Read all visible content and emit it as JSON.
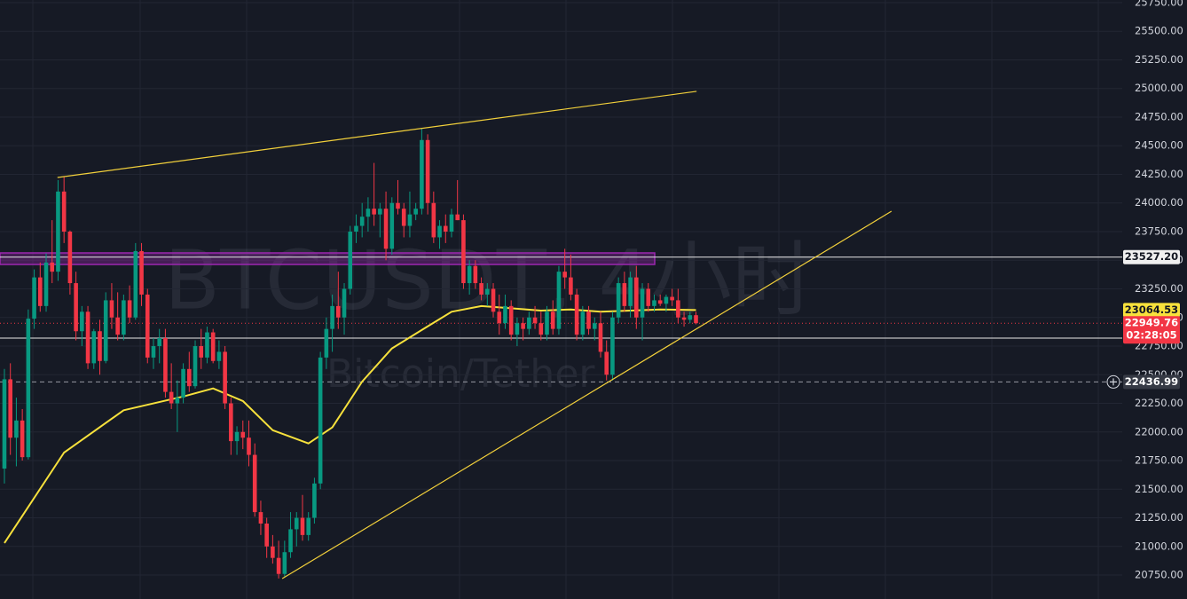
{
  "chart_data": {
    "type": "candlestick",
    "watermark": "BTCUSDT, 4小时",
    "watermark_subtitle": "Bitcoin/Tether",
    "up_color": "#089981",
    "down_color": "#f23645",
    "grid": true,
    "xlim": [
      -0.74,
      187.5
    ],
    "ylim": [
      20541,
      25773
    ],
    "yticks": [
      {
        "value": 25750,
        "label": "25750.00"
      },
      {
        "value": 25500,
        "label": "25500.00"
      },
      {
        "value": 25250,
        "label": "25250.00"
      },
      {
        "value": 25000,
        "label": "25000.00"
      },
      {
        "value": 24750,
        "label": "24750.00"
      },
      {
        "value": 24500,
        "label": "24500.00"
      },
      {
        "value": 24250,
        "label": "24250.00"
      },
      {
        "value": 24000,
        "label": "24000.00"
      },
      {
        "value": 23750,
        "label": "23750.00"
      },
      {
        "value": 23500,
        "label": "23500.00"
      },
      {
        "value": 23250,
        "label": "23250.00"
      },
      {
        "value": 23000,
        "label": "23000.00"
      },
      {
        "value": 22750,
        "label": "22750.00"
      },
      {
        "value": 22500,
        "label": "22500.00"
      },
      {
        "value": 22250,
        "label": "22250.00"
      },
      {
        "value": 22000,
        "label": "22000.00"
      },
      {
        "value": 21750,
        "label": "21750.00"
      },
      {
        "value": 21500,
        "label": "21500.00"
      },
      {
        "value": 21250,
        "label": "21250.00"
      },
      {
        "value": 21000,
        "label": "21000.00"
      },
      {
        "value": 20750,
        "label": "20750.00"
      }
    ],
    "ohlc": [
      [
        21680,
        22550,
        21550,
        22460
      ],
      [
        22460,
        22600,
        21800,
        21950
      ],
      [
        21950,
        22300,
        21700,
        22100
      ],
      [
        22100,
        22200,
        21750,
        21780
      ],
      [
        21780,
        23070,
        21760,
        22990
      ],
      [
        22990,
        23420,
        22900,
        23350
      ],
      [
        23350,
        23480,
        23050,
        23100
      ],
      [
        23100,
        23560,
        23050,
        23480
      ],
      [
        23480,
        23850,
        23300,
        23400
      ],
      [
        23400,
        24200,
        23320,
        24100
      ],
      [
        24100,
        24230,
        23650,
        23750
      ],
      [
        23750,
        23760,
        23200,
        23300
      ],
      [
        23300,
        23400,
        22800,
        22880
      ],
      [
        22880,
        23100,
        22750,
        23050
      ],
      [
        23050,
        23100,
        22550,
        22600
      ],
      [
        22600,
        22900,
        22550,
        22880
      ],
      [
        22880,
        22980,
        22500,
        22620
      ],
      [
        22620,
        23220,
        22600,
        23150
      ],
      [
        23150,
        23300,
        22900,
        23000
      ],
      [
        23000,
        23220,
        22800,
        22850
      ],
      [
        22850,
        23200,
        22800,
        23150
      ],
      [
        23150,
        23280,
        22950,
        23000
      ],
      [
        23000,
        23650,
        22980,
        23580
      ],
      [
        23580,
        23650,
        23100,
        23200
      ],
      [
        23200,
        23250,
        22600,
        22650
      ],
      [
        22650,
        22820,
        22550,
        22750
      ],
      [
        22750,
        22900,
        22600,
        22820
      ],
      [
        22820,
        22900,
        22300,
        22350
      ],
      [
        22350,
        22600,
        22200,
        22250
      ],
      [
        22250,
        22450,
        22000,
        22300
      ],
      [
        22300,
        22600,
        22250,
        22550
      ],
      [
        22550,
        22700,
        22350,
        22400
      ],
      [
        22400,
        22800,
        22380,
        22750
      ],
      [
        22750,
        22900,
        22550,
        22650
      ],
      [
        22650,
        22920,
        22600,
        22870
      ],
      [
        22870,
        22900,
        22600,
        22620
      ],
      [
        22620,
        22800,
        22550,
        22700
      ],
      [
        22700,
        22750,
        22200,
        22250
      ],
      [
        22250,
        22300,
        21800,
        21920
      ],
      [
        21920,
        22050,
        21800,
        22000
      ],
      [
        22000,
        22100,
        21850,
        21950
      ],
      [
        21950,
        22100,
        21700,
        21800
      ],
      [
        21800,
        21900,
        21260,
        21300
      ],
      [
        21300,
        21400,
        21100,
        21200
      ],
      [
        21200,
        21250,
        20900,
        21000
      ],
      [
        21000,
        21100,
        20850,
        20900
      ],
      [
        20900,
        21050,
        20720,
        20760
      ],
      [
        20760,
        21050,
        20730,
        20950
      ],
      [
        20950,
        21300,
        20900,
        21150
      ],
      [
        21150,
        21300,
        21000,
        21250
      ],
      [
        21250,
        21450,
        21050,
        21100
      ],
      [
        21100,
        21300,
        21050,
        21250
      ],
      [
        21250,
        21600,
        21200,
        21550
      ],
      [
        21550,
        22700,
        21500,
        22650
      ],
      [
        22650,
        23000,
        22550,
        22900
      ],
      [
        22900,
        23200,
        22700,
        23100
      ],
      [
        23100,
        23400,
        22900,
        23000
      ],
      [
        23000,
        23300,
        22850,
        23250
      ],
      [
        23250,
        23800,
        23200,
        23750
      ],
      [
        23750,
        23900,
        23650,
        23800
      ],
      [
        23800,
        24000,
        23700,
        23880
      ],
      [
        23880,
        24050,
        23750,
        23950
      ],
      [
        23950,
        24350,
        23800,
        23900
      ],
      [
        23900,
        24000,
        23700,
        23950
      ],
      [
        23950,
        24100,
        23500,
        23600
      ],
      [
        23600,
        24050,
        23550,
        24000
      ],
      [
        24000,
        24200,
        23900,
        23950
      ],
      [
        23950,
        24000,
        23700,
        23800
      ],
      [
        23800,
        24100,
        23700,
        23900
      ],
      [
        23900,
        24000,
        23850,
        23950
      ],
      [
        23950,
        24650,
        23900,
        24550
      ],
      [
        24550,
        24600,
        23900,
        24000
      ],
      [
        24000,
        24100,
        23650,
        23700
      ],
      [
        23700,
        23850,
        23600,
        23800
      ],
      [
        23800,
        23900,
        23650,
        23750
      ],
      [
        23750,
        23950,
        23700,
        23900
      ],
      [
        23900,
        24200,
        23850,
        23850
      ],
      [
        23850,
        23900,
        23250,
        23300
      ],
      [
        23300,
        23500,
        23200,
        23450
      ],
      [
        23450,
        23500,
        23250,
        23300
      ],
      [
        23300,
        23350,
        23150,
        23200
      ],
      [
        23200,
        23300,
        23100,
        23250
      ],
      [
        23250,
        23300,
        23000,
        23050
      ],
      [
        23050,
        23200,
        22850,
        22950
      ],
      [
        22950,
        23200,
        22900,
        23100
      ],
      [
        23100,
        23150,
        22800,
        22850
      ],
      [
        22850,
        23000,
        22750,
        22950
      ],
      [
        22950,
        23000,
        22800,
        22900
      ],
      [
        22900,
        23050,
        22850,
        23000
      ],
      [
        23000,
        23100,
        22900,
        22950
      ],
      [
        22950,
        23050,
        22800,
        22850
      ],
      [
        22850,
        23100,
        22800,
        23050
      ],
      [
        23050,
        23150,
        22850,
        22900
      ],
      [
        22900,
        23450,
        22850,
        23400
      ],
      [
        23400,
        23600,
        23250,
        23350
      ],
      [
        23350,
        23550,
        23150,
        23200
      ],
      [
        23200,
        23250,
        22800,
        22850
      ],
      [
        22850,
        23100,
        22800,
        23050
      ],
      [
        23050,
        23100,
        22850,
        22900
      ],
      [
        22900,
        23000,
        22800,
        22950
      ],
      [
        22950,
        23050,
        22650,
        22700
      ],
      [
        22700,
        22800,
        22450,
        22500
      ],
      [
        22500,
        23050,
        22450,
        23000
      ],
      [
        23000,
        23350,
        22950,
        23300
      ],
      [
        23300,
        23400,
        23050,
        23100
      ],
      [
        23100,
        23400,
        23000,
        23350
      ],
      [
        23350,
        23450,
        22900,
        23000
      ],
      [
        23000,
        23300,
        22800,
        23250
      ],
      [
        23250,
        23300,
        23050,
        23100
      ],
      [
        23100,
        23200,
        23050,
        23150
      ],
      [
        23150,
        23200,
        23100,
        23120
      ],
      [
        23120,
        23200,
        23050,
        23180
      ],
      [
        23180,
        23250,
        23100,
        23150
      ],
      [
        23150,
        23250,
        22950,
        23000
      ],
      [
        23000,
        23050,
        22920,
        22980
      ],
      [
        22980,
        23050,
        22950,
        23020
      ],
      [
        23020,
        23050,
        22940,
        22949.76
      ]
    ],
    "countdown": "02:28:05",
    "ma": {
      "color": "#f7e13c",
      "x": [
        0,
        10,
        20,
        30,
        35,
        40,
        45,
        51,
        55,
        60,
        65,
        70,
        75,
        80,
        85,
        90,
        95,
        100,
        105,
        110,
        116
      ],
      "values": [
        21030,
        21820,
        22190,
        22310,
        22380,
        22270,
        22015,
        21900,
        22040,
        22440,
        22730,
        22890,
        23050,
        23100,
        23080,
        23060,
        23070,
        23050,
        23060,
        23070,
        23064.53
      ]
    },
    "trendlines": {
      "color": "#f2d03b",
      "lines": [
        {
          "x": [
            8.9,
            116.1
          ],
          "y": [
            24223,
            24975
          ]
        },
        {
          "x": [
            46.6,
            148.8
          ],
          "y": [
            20719,
            23928
          ]
        }
      ]
    },
    "zone": {
      "low": 23463,
      "high": 23564,
      "color": "#9c27b0"
    },
    "level": {
      "value": 23527.2,
      "label": "23527.20"
    },
    "hline": 22820,
    "crosshair": 22436.99
  }
}
